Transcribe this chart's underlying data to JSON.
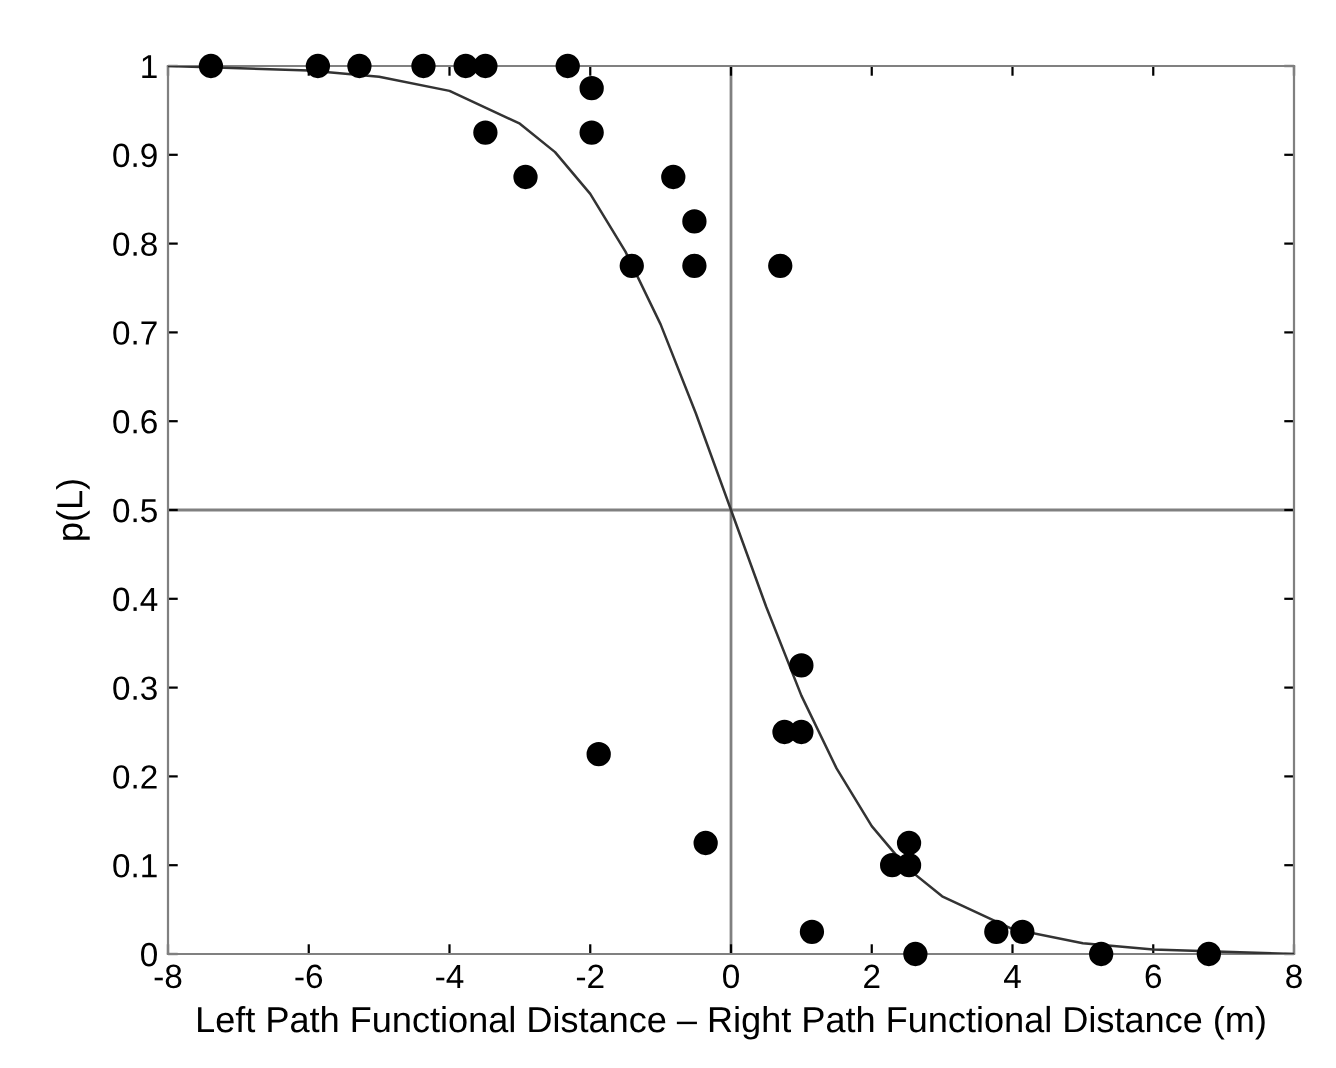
{
  "chart_data": {
    "type": "scatter",
    "xlabel": "Left Path Functional Distance – Right Path Functional Distance (m)",
    "ylabel": "p(L)",
    "series": [
      {
        "color": "#000000",
        "marker": "circle",
        "x": [
          -7.39,
          -5.87,
          -5.28,
          -4.37,
          -3.77,
          -3.49,
          -2.32,
          -1.98,
          -3.49,
          -1.98,
          -2.92,
          -0.82,
          -0.52,
          -1.41,
          -0.52,
          0.7,
          1.0,
          0.76,
          1.0,
          -1.88,
          -0.36,
          1.15,
          2.29,
          2.53,
          2.53,
          2.62,
          3.77,
          4.14,
          5.26,
          6.79
        ],
        "values": [
          1,
          1,
          1,
          1,
          1,
          1,
          1,
          0.975,
          0.925,
          0.925,
          0.875,
          0.875,
          0.825,
          0.775,
          0.775,
          0.775,
          0.325,
          0.25,
          0.25,
          0.225,
          0.125,
          0.025,
          0.1,
          0.1,
          0.125,
          0,
          0.025,
          0.025,
          0,
          0
        ]
      },
      {
        "type": "line",
        "color": "#333333",
        "marker": "none",
        "line_style": "solid",
        "x": [
          -8,
          -6,
          -5,
          -4,
          -3,
          -2.5,
          -2,
          -1.5,
          -1,
          -0.5,
          0,
          0.5,
          1,
          1.5,
          2,
          2.5,
          3,
          4,
          5,
          6,
          8
        ],
        "values": [
          1,
          0.995,
          0.988,
          0.972,
          0.935,
          0.903,
          0.856,
          0.791,
          0.709,
          0.609,
          0.5,
          0.391,
          0.291,
          0.209,
          0.144,
          0.097,
          0.065,
          0.028,
          0.012,
          0.005,
          0
        ]
      }
    ],
    "xlim": [
      -8,
      8
    ],
    "xticks": [
      -8,
      -6,
      -4,
      -2,
      0,
      2,
      4,
      6,
      8
    ],
    "ylim": [
      0,
      1
    ],
    "yticks": [
      0,
      0.1,
      0.2,
      0.3,
      0.4,
      0.5,
      0.6,
      0.7,
      0.8,
      0.9,
      1
    ],
    "ref_lines": [
      {
        "axis": "x",
        "value": 0,
        "color": "#808080",
        "line_style": "solid"
      },
      {
        "axis": "y",
        "value": 0.5,
        "color": "#808080",
        "line_style": "solid"
      }
    ],
    "grid": false,
    "legend": false
  }
}
